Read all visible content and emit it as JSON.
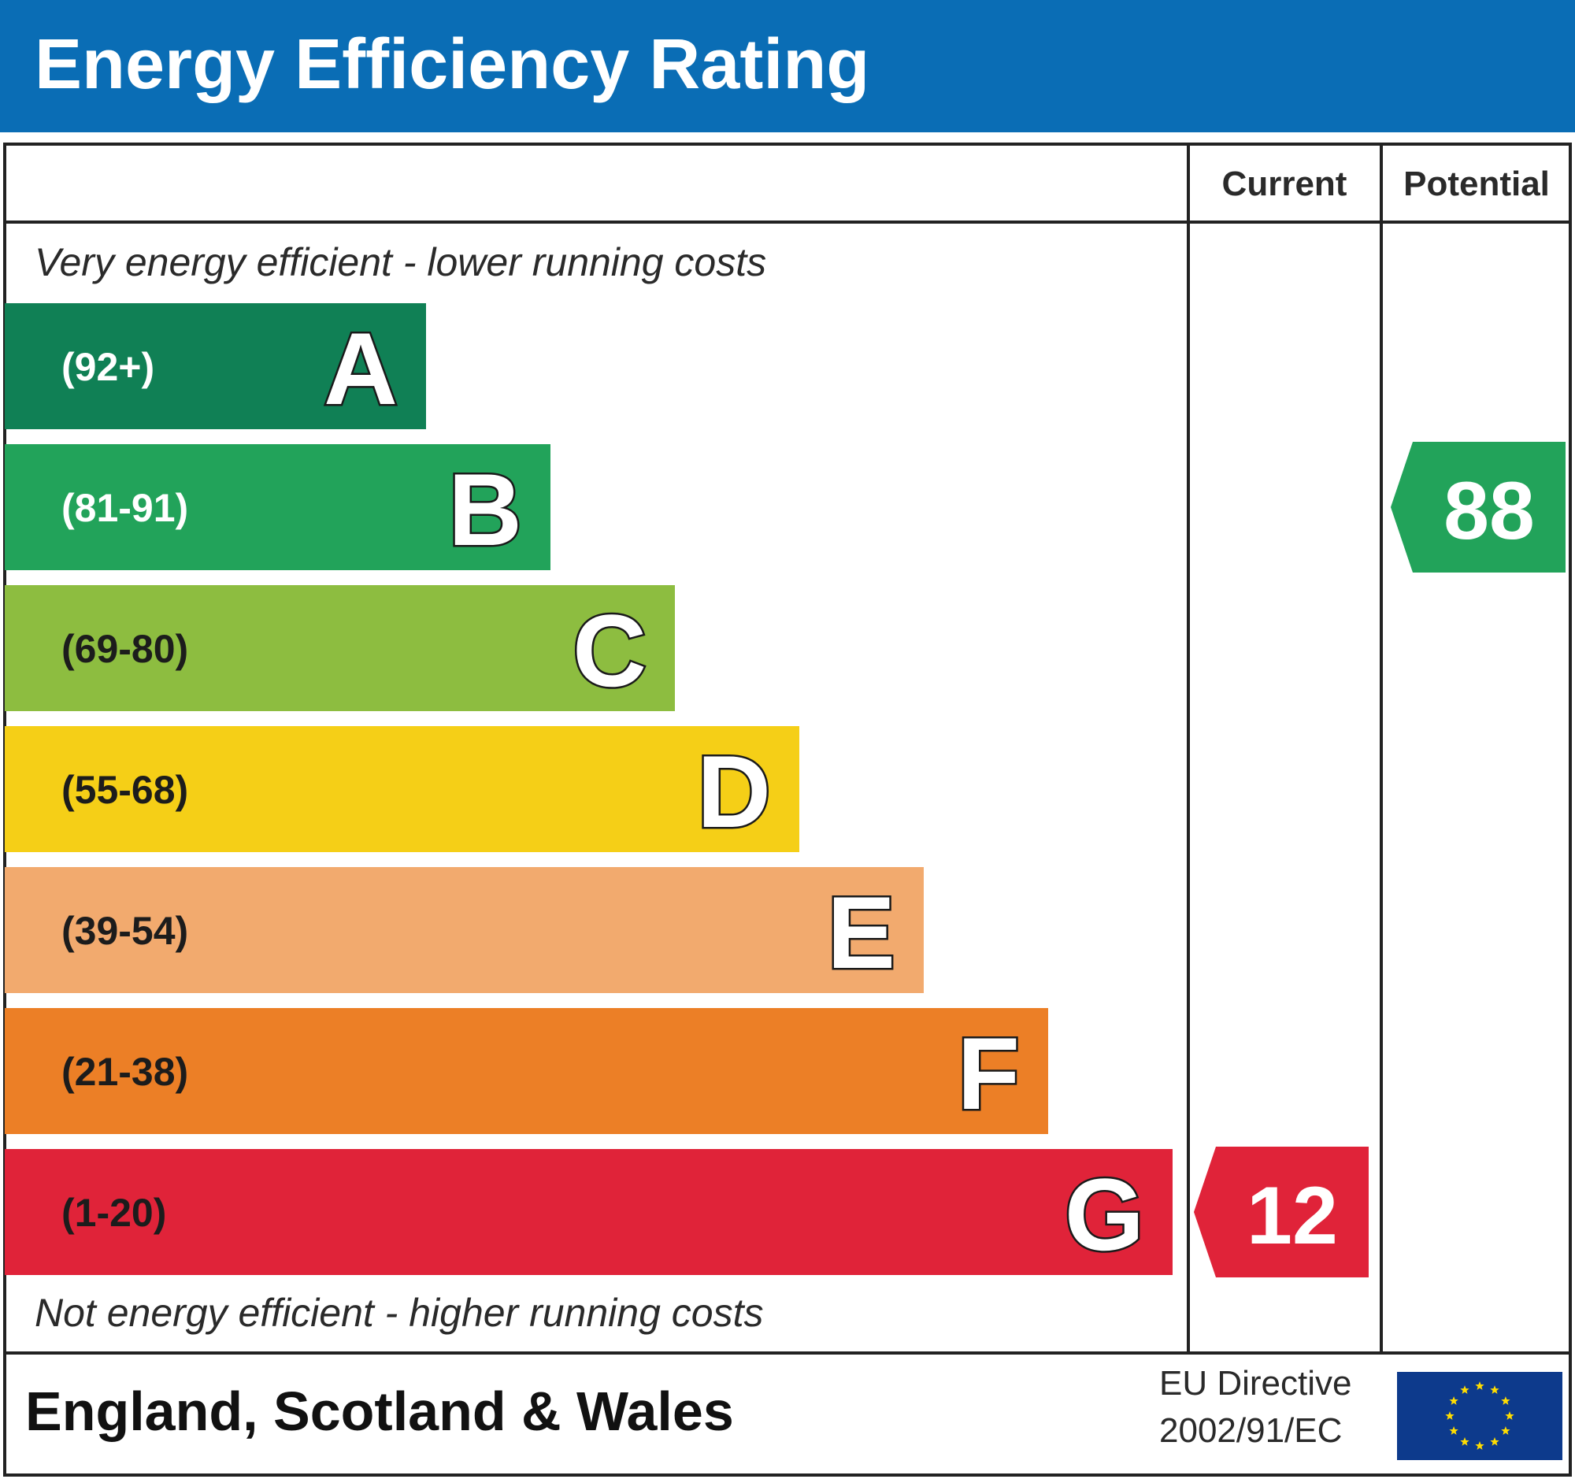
{
  "title": "Energy Efficiency Rating",
  "header_color": "#0a6db5",
  "columns": {
    "current": "Current",
    "potential": "Potential"
  },
  "top_note": "Very energy efficient - lower running costs",
  "bottom_note": "Not energy efficient - higher running costs",
  "region": "England, Scotland & Wales",
  "directive": {
    "line1": "EU Directive",
    "line2": "2002/91/EC"
  },
  "eu_flag_icon": "eu-flag-icon",
  "chart_data": {
    "type": "bar",
    "bands": [
      {
        "letter": "A",
        "range": "(92+)",
        "min": 92,
        "max": 100,
        "color": "#108055",
        "range_text_color": "#ffffff"
      },
      {
        "letter": "B",
        "range": "(81-91)",
        "min": 81,
        "max": 91,
        "color": "#22a35a",
        "range_text_color": "#ffffff"
      },
      {
        "letter": "C",
        "range": "(69-80)",
        "min": 69,
        "max": 80,
        "color": "#8dbd40",
        "range_text_color": "#1c1c1c"
      },
      {
        "letter": "D",
        "range": "(55-68)",
        "min": 55,
        "max": 68,
        "color": "#f5cf17",
        "range_text_color": "#1c1c1c"
      },
      {
        "letter": "E",
        "range": "(39-54)",
        "min": 39,
        "max": 54,
        "color": "#f2aa6e",
        "range_text_color": "#1c1c1c"
      },
      {
        "letter": "F",
        "range": "(21-38)",
        "min": 21,
        "max": 38,
        "color": "#ec7f26",
        "range_text_color": "#1c1c1c"
      },
      {
        "letter": "G",
        "range": "(1-20)",
        "min": 1,
        "max": 20,
        "color": "#e02339",
        "range_text_color": "#1c1c1c"
      }
    ],
    "current": {
      "value": 12,
      "band": "G",
      "color": "#e02339"
    },
    "potential": {
      "value": 88,
      "band": "B",
      "color": "#22a35a"
    }
  }
}
